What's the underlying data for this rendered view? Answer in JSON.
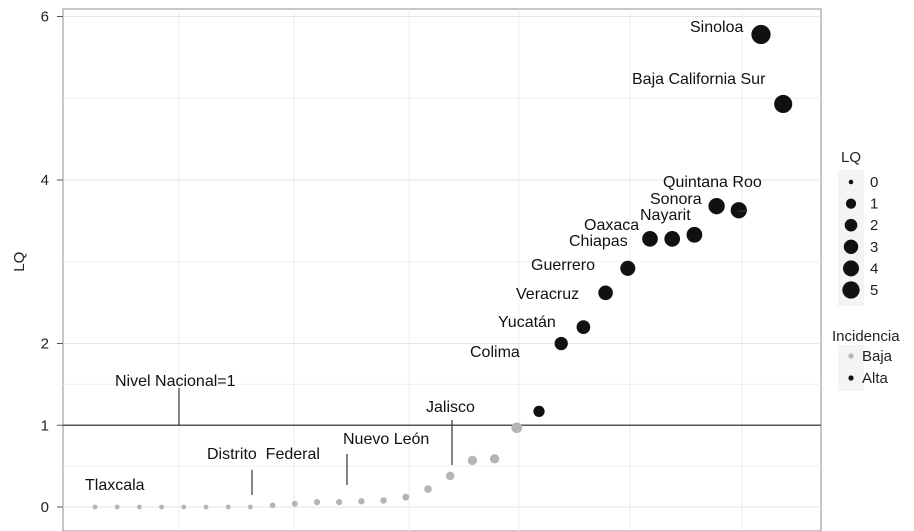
{
  "chart_data": {
    "type": "scatter",
    "title": "",
    "xlabel": "",
    "ylabel": "LQ",
    "ylim": [
      -0.15,
      6.15
    ],
    "y_ticks": [
      {
        "value": 0,
        "label": "0"
      },
      {
        "value": 1,
        "label": "1"
      },
      {
        "value": 2,
        "label": "2"
      },
      {
        "value": 4,
        "label": "4"
      },
      {
        "value": 6,
        "label": "6"
      }
    ],
    "grid": true,
    "legend_position": "right",
    "reference_line": {
      "value": 1,
      "label": "Nivel Nacional=1"
    },
    "points": [
      {
        "rank": 1,
        "lq": 0.0,
        "incidencia": "Baja",
        "label": "Tlaxcala"
      },
      {
        "rank": 2,
        "lq": 0.0,
        "incidencia": "Baja",
        "label": ""
      },
      {
        "rank": 3,
        "lq": 0.0,
        "incidencia": "Baja",
        "label": ""
      },
      {
        "rank": 4,
        "lq": 0.0,
        "incidencia": "Baja",
        "label": ""
      },
      {
        "rank": 5,
        "lq": 0.0,
        "incidencia": "Baja",
        "label": ""
      },
      {
        "rank": 6,
        "lq": 0.0,
        "incidencia": "Baja",
        "label": ""
      },
      {
        "rank": 7,
        "lq": 0.0,
        "incidencia": "Baja",
        "label": ""
      },
      {
        "rank": 8,
        "lq": 0.0,
        "incidencia": "Baja",
        "label": "Distrito  Federal"
      },
      {
        "rank": 9,
        "lq": 0.02,
        "incidencia": "Baja",
        "label": ""
      },
      {
        "rank": 10,
        "lq": 0.04,
        "incidencia": "Baja",
        "label": ""
      },
      {
        "rank": 11,
        "lq": 0.06,
        "incidencia": "Baja",
        "label": ""
      },
      {
        "rank": 12,
        "lq": 0.06,
        "incidencia": "Baja",
        "label": "Nuevo León"
      },
      {
        "rank": 13,
        "lq": 0.07,
        "incidencia": "Baja",
        "label": ""
      },
      {
        "rank": 14,
        "lq": 0.08,
        "incidencia": "Baja",
        "label": ""
      },
      {
        "rank": 15,
        "lq": 0.12,
        "incidencia": "Baja",
        "label": ""
      },
      {
        "rank": 16,
        "lq": 0.22,
        "incidencia": "Baja",
        "label": ""
      },
      {
        "rank": 17,
        "lq": 0.38,
        "incidencia": "Baja",
        "label": "Jalisco"
      },
      {
        "rank": 18,
        "lq": 0.57,
        "incidencia": "Baja",
        "label": ""
      },
      {
        "rank": 19,
        "lq": 0.59,
        "incidencia": "Baja",
        "label": ""
      },
      {
        "rank": 20,
        "lq": 0.97,
        "incidencia": "Baja",
        "label": ""
      },
      {
        "rank": 21,
        "lq": 1.17,
        "incidencia": "Alta",
        "label": ""
      },
      {
        "rank": 22,
        "lq": 2.0,
        "incidencia": "Alta",
        "label": "Colima"
      },
      {
        "rank": 23,
        "lq": 2.2,
        "incidencia": "Alta",
        "label": "Yucatán"
      },
      {
        "rank": 24,
        "lq": 2.62,
        "incidencia": "Alta",
        "label": "Veracruz"
      },
      {
        "rank": 25,
        "lq": 2.92,
        "incidencia": "Alta",
        "label": "Guerrero"
      },
      {
        "rank": 26,
        "lq": 3.28,
        "incidencia": "Alta",
        "label": "Chiapas"
      },
      {
        "rank": 27,
        "lq": 3.28,
        "incidencia": "Alta",
        "label": "Oaxaca"
      },
      {
        "rank": 28,
        "lq": 3.33,
        "incidencia": "Alta",
        "label": "Nayarit"
      },
      {
        "rank": 29,
        "lq": 3.68,
        "incidencia": "Alta",
        "label": "Sonora"
      },
      {
        "rank": 30,
        "lq": 3.63,
        "incidencia": "Alta",
        "label": "Quintana Roo"
      },
      {
        "rank": 31,
        "lq": 5.78,
        "incidencia": "Alta",
        "label": "Sinoloa"
      },
      {
        "rank": 32,
        "lq": 4.93,
        "incidencia": "Alta",
        "label": "Baja California Sur"
      }
    ],
    "legend": {
      "size_title": "LQ",
      "size_items": [
        "0",
        "1",
        "2",
        "3",
        "4",
        "5"
      ],
      "color_title": "Incidencia",
      "color_items": [
        {
          "label": "Baja",
          "color": "#b5b5b5"
        },
        {
          "label": "Alta",
          "color": "#111111"
        }
      ]
    },
    "colors": {
      "Baja": "#b5b5b5",
      "Alta": "#111111",
      "reference_line": "#555555",
      "grid": "#e6e6e6"
    }
  }
}
